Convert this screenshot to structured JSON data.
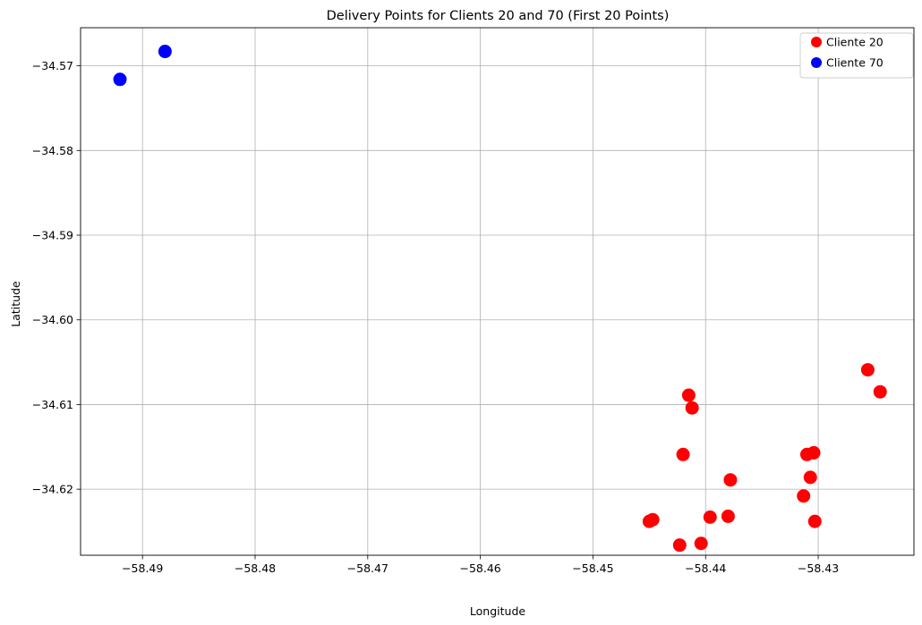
{
  "chart_data": {
    "type": "scatter",
    "title": "Delivery Points for Clients 20 and 70 (First 20 Points)",
    "xlabel": "Longitude",
    "ylabel": "Latitude",
    "xlim": [
      -58.4955,
      -58.4215
    ],
    "ylim": [
      -34.6278,
      -34.5655
    ],
    "xticks": [
      -58.49,
      -58.48,
      -58.47,
      -58.46,
      -58.45,
      -58.44,
      -58.43
    ],
    "xtick_labels": [
      "−58.49",
      "−58.48",
      "−58.47",
      "−58.46",
      "−58.45",
      "−58.44",
      "−58.43"
    ],
    "yticks": [
      -34.57,
      -34.58,
      -34.59,
      -34.6,
      -34.61,
      -34.62
    ],
    "ytick_labels": [
      "−34.57",
      "−34.58",
      "−34.59",
      "−34.60",
      "−34.61",
      "−34.62"
    ],
    "grid": true,
    "legend_position": "top-right",
    "series": [
      {
        "name": "Cliente 20",
        "color": "#ff0000",
        "points": [
          [
            -58.4256,
            -34.6059
          ],
          [
            -58.4245,
            -34.6085
          ],
          [
            -58.4415,
            -34.6089
          ],
          [
            -58.4412,
            -34.6104
          ],
          [
            -58.442,
            -34.6159
          ],
          [
            -58.431,
            -34.6159
          ],
          [
            -58.4304,
            -34.6157
          ],
          [
            -58.4307,
            -34.6186
          ],
          [
            -58.4378,
            -34.6189
          ],
          [
            -58.4313,
            -34.6208
          ],
          [
            -58.4303,
            -34.6238
          ],
          [
            -58.438,
            -34.6232
          ],
          [
            -58.4396,
            -34.6233
          ],
          [
            -58.4447,
            -34.6236
          ],
          [
            -58.445,
            -34.6238
          ],
          [
            -58.4423,
            -34.6266
          ],
          [
            -58.4404,
            -34.6264
          ]
        ]
      },
      {
        "name": "Cliente 70",
        "color": "#0000ff",
        "points": [
          [
            -58.492,
            -34.5716
          ],
          [
            -58.488,
            -34.5683
          ]
        ]
      }
    ]
  }
}
